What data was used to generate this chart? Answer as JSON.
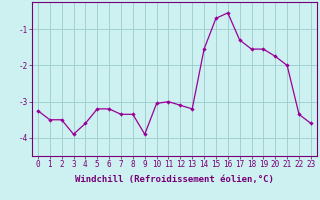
{
  "x": [
    0,
    1,
    2,
    3,
    4,
    5,
    6,
    7,
    8,
    9,
    10,
    11,
    12,
    13,
    14,
    15,
    16,
    17,
    18,
    19,
    20,
    21,
    22,
    23
  ],
  "y": [
    -3.25,
    -3.5,
    -3.5,
    -3.9,
    -3.6,
    -3.2,
    -3.2,
    -3.35,
    -3.35,
    -3.9,
    -3.05,
    -3.0,
    -3.1,
    -3.2,
    -1.55,
    -0.7,
    -0.55,
    -1.3,
    -1.55,
    -1.55,
    -1.75,
    -2.0,
    -3.35,
    -3.6
  ],
  "line_color": "#990099",
  "marker": "D",
  "marker_size": 2.2,
  "bg_color": "#cdf0f0",
  "grid_color": "#99cccc",
  "xlabel": "Windchill (Refroidissement éolien,°C)",
  "xlabel_fontsize": 6.5,
  "tick_fontsize": 5.5,
  "yticks": [
    -4,
    -3,
    -2,
    -1
  ],
  "ylim": [
    -4.5,
    -0.25
  ],
  "xlim": [
    -0.5,
    23.5
  ],
  "xticks": [
    0,
    1,
    2,
    3,
    4,
    5,
    6,
    7,
    8,
    9,
    10,
    11,
    12,
    13,
    14,
    15,
    16,
    17,
    18,
    19,
    20,
    21,
    22,
    23
  ]
}
